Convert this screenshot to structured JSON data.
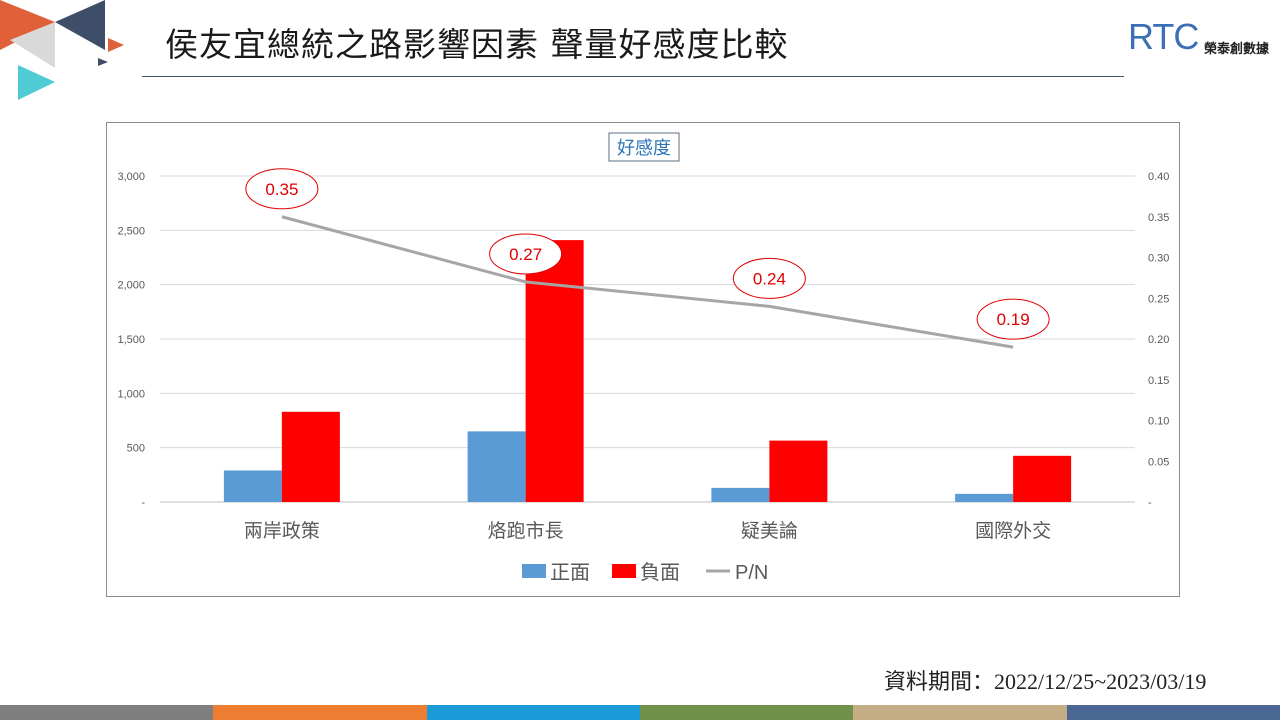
{
  "slide": {
    "title": "侯友宜總統之路影響因素 聲量好感度比較",
    "logo_text": "RTC",
    "logo_subtitle": "榮泰創數據",
    "date_range": "資料期間：2022/12/25~2023/03/19",
    "bottom_bar_colors": [
      "#7f7f7f",
      "#ed7d31",
      "#1a9ad6",
      "#70914a",
      "#c5ad86",
      "#4b6894"
    ]
  },
  "chart_data": {
    "type": "bar",
    "title": "好感度",
    "categories": [
      "兩岸政策",
      "烙跑市長",
      "疑美論",
      "國際外交"
    ],
    "series": [
      {
        "name": "正面",
        "axis": "left",
        "kind": "bar",
        "color": "#5b9bd5",
        "values": [
          290,
          650,
          130,
          75
        ]
      },
      {
        "name": "負面",
        "axis": "left",
        "kind": "bar",
        "color": "#ff0000",
        "values": [
          830,
          2410,
          565,
          425
        ]
      },
      {
        "name": "P/N",
        "axis": "right",
        "kind": "line",
        "color": "#a6a6a6",
        "values": [
          0.35,
          0.27,
          0.24,
          0.19
        ],
        "labels": [
          "0.35",
          "0.27",
          "0.24",
          "0.19"
        ]
      }
    ],
    "y_left": {
      "min": 0,
      "max": 3000,
      "ticks": [
        "-",
        "500",
        "1,000",
        "1,500",
        "2,000",
        "2,500",
        "3,000"
      ]
    },
    "y_right": {
      "min": 0,
      "max": 0.4,
      "ticks": [
        "-",
        "0.05",
        "0.10",
        "0.15",
        "0.20",
        "0.25",
        "0.30",
        "0.35",
        "0.40"
      ]
    },
    "grid": true,
    "legend_position": "bottom"
  }
}
